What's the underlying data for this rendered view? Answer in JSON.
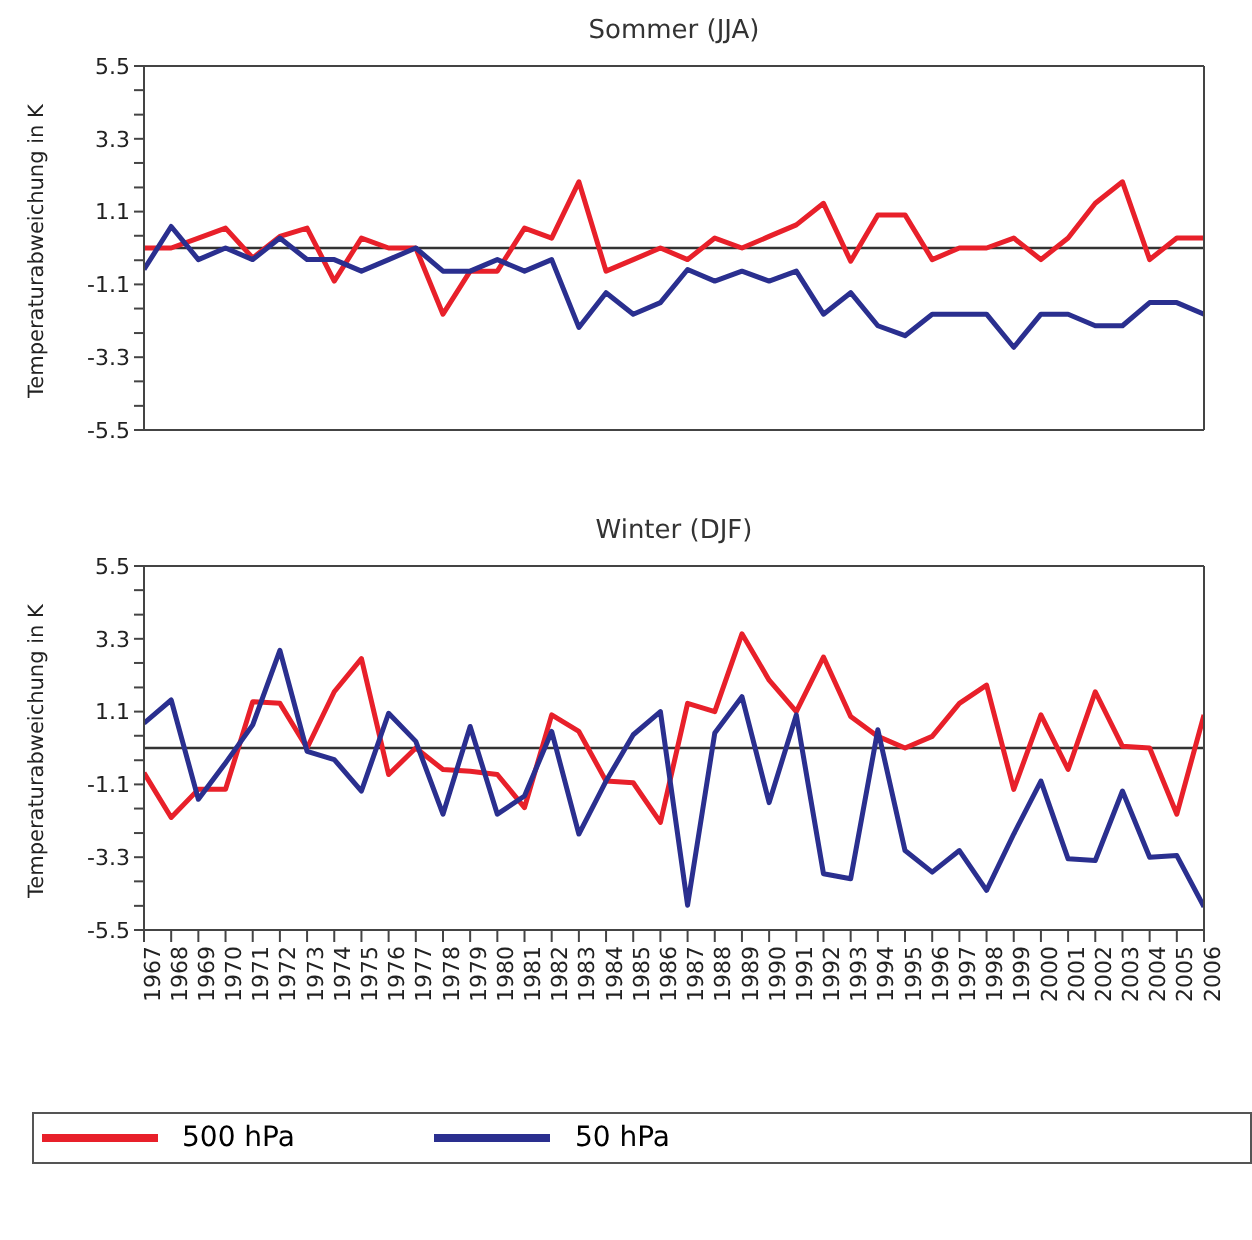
{
  "chart_data": [
    {
      "type": "line",
      "title": "Sommer (JJA)",
      "ylabel": "Temperaturabweichung in K",
      "categories": [
        "1967",
        "1968",
        "1969",
        "1970",
        "1971",
        "1972",
        "1973",
        "1974",
        "1975",
        "1976",
        "1977",
        "1978",
        "1979",
        "1980",
        "1981",
        "1982",
        "1983",
        "1984",
        "1985",
        "1986",
        "1987",
        "1988",
        "1989",
        "1990",
        "1991",
        "1992",
        "1993",
        "1994",
        "1995",
        "1996",
        "1997",
        "1998",
        "1999",
        "2000",
        "2001",
        "2002",
        "2003",
        "2004",
        "2005",
        "2006"
      ],
      "series": [
        {
          "color": "#e8202a",
          "values": [
            0,
            0,
            0.3,
            0.6,
            -0.3,
            0.35,
            0.6,
            -1.0,
            0.3,
            0,
            0,
            -2.0,
            -0.7,
            -0.7,
            0.6,
            0.3,
            2.0,
            -0.7,
            -0.35,
            0,
            -0.35,
            0.3,
            0,
            0.35,
            0.7,
            1.35,
            -0.4,
            1.0,
            1.0,
            -0.35,
            0,
            0,
            0.3,
            -0.35,
            0.3,
            1.35,
            2.0,
            -0.35,
            0.3,
            0.3
          ]
        },
        {
          "color": "#2a2f8f",
          "values": [
            -0.65,
            0.65,
            -0.35,
            0,
            -0.35,
            0.3,
            -0.35,
            -0.35,
            -0.7,
            -0.35,
            0,
            -0.7,
            -0.7,
            -0.35,
            -0.7,
            -0.35,
            -2.4,
            -1.35,
            -2.0,
            -1.65,
            -0.65,
            -1.0,
            -0.7,
            -1.0,
            -0.7,
            -2.0,
            -1.35,
            -2.35,
            -2.65,
            -2.0,
            -2.0,
            -2.0,
            -3.0,
            -2.0,
            -2.0,
            -2.35,
            -2.35,
            -1.65,
            -1.65,
            -2.0
          ]
        }
      ],
      "ylim": [
        -5.5,
        5.5
      ],
      "yticks": [
        5.5,
        {
          "value": 4.77,
          "label": null
        },
        {
          "value": 4.03,
          "label": null
        },
        3.3,
        {
          "value": 2.57,
          "label": null
        },
        {
          "value": 1.83,
          "label": null
        },
        1.1,
        {
          "value": 0.37,
          "label": null
        },
        {
          "value": -0.37,
          "label": null
        },
        -1.1,
        {
          "value": -1.83,
          "label": null
        },
        {
          "value": -2.57,
          "label": null
        },
        -3.3,
        {
          "value": -4.03,
          "label": null
        },
        {
          "value": -4.77,
          "label": null
        },
        -5.5
      ],
      "ref_lines": [
        {
          "axis": "y",
          "value": 0,
          "color": "#333333"
        }
      ],
      "tick_labels": "y"
    },
    {
      "type": "line",
      "title": "Winter (DJF)",
      "ylabel": "Temperaturabweichung in K",
      "categories": [
        "1967",
        "1968",
        "1969",
        "1970",
        "1971",
        "1972",
        "1973",
        "1974",
        "1975",
        "1976",
        "1977",
        "1978",
        "1979",
        "1980",
        "1981",
        "1982",
        "1983",
        "1984",
        "1985",
        "1986",
        "1987",
        "1988",
        "1989",
        "1990",
        "1991",
        "1992",
        "1993",
        "1994",
        "1995",
        "1996",
        "1997",
        "1998",
        "1999",
        "2000",
        "2001",
        "2002",
        "2003",
        "2004",
        "2005",
        "2006"
      ],
      "series": [
        {
          "name": "500 hPa",
          "color": "#e8202a",
          "values": [
            -0.75,
            -2.1,
            -1.25,
            -1.25,
            1.4,
            1.35,
            0,
            1.7,
            2.7,
            -0.8,
            0,
            -0.65,
            -0.7,
            -0.8,
            -1.8,
            1.0,
            0.5,
            -1.0,
            -1.05,
            -2.25,
            1.35,
            1.1,
            3.45,
            2.05,
            1.1,
            2.75,
            0.95,
            0.35,
            0,
            0.35,
            1.35,
            1.9,
            -1.25,
            1.0,
            -0.65,
            1.7,
            0.05,
            0,
            -2.0,
            1.0
          ]
        },
        {
          "name": "50 hPa",
          "color": "#2a2f8f",
          "values": [
            0.75,
            1.45,
            -1.55,
            -0.45,
            0.7,
            2.95,
            -0.1,
            -0.35,
            -1.3,
            1.05,
            0.2,
            -2.0,
            0.65,
            -2.0,
            -1.45,
            0.5,
            -2.6,
            -1.0,
            0.4,
            1.1,
            -4.75,
            0.45,
            1.55,
            -1.65,
            1.0,
            -3.8,
            -3.95,
            0.55,
            -3.1,
            -3.75,
            -3.1,
            -4.3,
            -2.6,
            -1.0,
            -3.35,
            -3.4,
            -1.3,
            -3.3,
            -3.25,
            -4.8
          ]
        }
      ],
      "ylim": [
        -5.5,
        5.5
      ],
      "yticks": [
        5.5,
        {
          "value": 4.77,
          "label": null
        },
        {
          "value": 4.03,
          "label": null
        },
        3.3,
        {
          "value": 2.57,
          "label": null
        },
        {
          "value": 1.83,
          "label": null
        },
        1.1,
        {
          "value": 0.37,
          "label": null
        },
        {
          "value": -0.37,
          "label": null
        },
        -1.1,
        {
          "value": -1.83,
          "label": null
        },
        {
          "value": -2.57,
          "label": null
        },
        -3.3,
        {
          "value": -4.03,
          "label": null
        },
        {
          "value": -4.77,
          "label": null
        },
        -5.5
      ],
      "ref_lines": [
        {
          "axis": "y",
          "value": 0,
          "color": "#333333"
        }
      ],
      "legend": "bottom"
    }
  ]
}
